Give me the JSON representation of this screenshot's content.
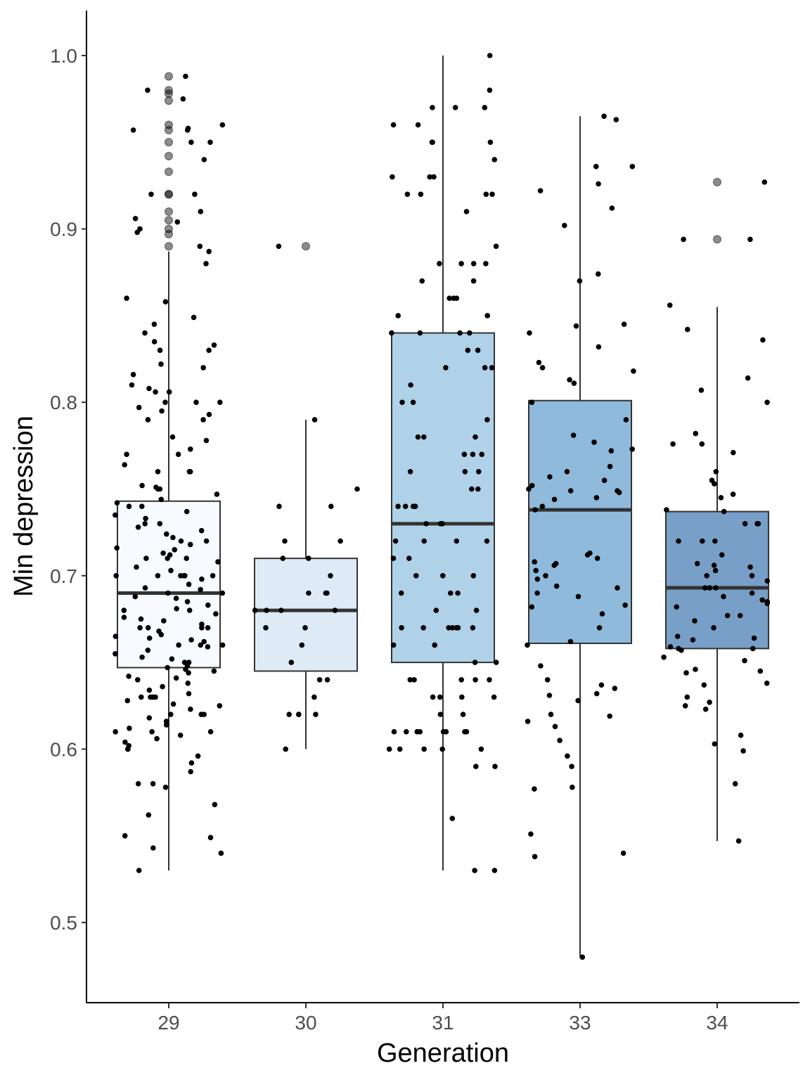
{
  "chart_data": {
    "type": "boxplot",
    "xlabel": "Generation",
    "ylabel": "Min depression",
    "categories": [
      "29",
      "30",
      "31",
      "33",
      "34"
    ],
    "ylim": [
      0.455,
      1.025
    ],
    "yticks": [
      0.5,
      0.6,
      0.7,
      0.8,
      0.9,
      1.0
    ],
    "ytick_labels": [
      "0.5",
      "0.6",
      "0.7",
      "0.8",
      "0.9",
      "1.0"
    ],
    "grid": false,
    "legend": "none",
    "boxes": [
      {
        "category": "29",
        "whisker_low": 0.53,
        "q1": 0.647,
        "median": 0.69,
        "q3": 0.743,
        "whisker_high": 0.887,
        "fill": "#f7fbff",
        "outliers": [
          0.988,
          0.98,
          0.978,
          0.974,
          0.96,
          0.957,
          0.95,
          0.942,
          0.933,
          0.92,
          0.92,
          0.91,
          0.905,
          0.9,
          0.897,
          0.89
        ]
      },
      {
        "category": "30",
        "whisker_low": 0.6,
        "q1": 0.645,
        "median": 0.68,
        "q3": 0.71,
        "whisker_high": 0.79,
        "fill": "#deebf7",
        "outliers": [
          0.89
        ]
      },
      {
        "category": "31",
        "whisker_low": 0.53,
        "q1": 0.65,
        "median": 0.73,
        "q3": 0.84,
        "whisker_high": 1.0,
        "fill": "#b0d2e8",
        "outliers": []
      },
      {
        "category": "33",
        "whisker_low": 0.48,
        "q1": 0.661,
        "median": 0.738,
        "q3": 0.801,
        "whisker_high": 0.965,
        "fill": "#8fbadb",
        "outliers": []
      },
      {
        "category": "34",
        "whisker_low": 0.547,
        "q1": 0.658,
        "median": 0.693,
        "q3": 0.737,
        "whisker_high": 0.855,
        "fill": "#789fc8",
        "outliers": [
          0.927,
          0.894
        ]
      }
    ],
    "points": [
      {
        "category": "29",
        "values": [
          0.988,
          0.98,
          0.975,
          0.96,
          0.958,
          0.957,
          0.957,
          0.95,
          0.95,
          0.94,
          0.92,
          0.92,
          0.91,
          0.906,
          0.904,
          0.9,
          0.898,
          0.89,
          0.887,
          0.88,
          0.86,
          0.858,
          0.849,
          0.845,
          0.84,
          0.835,
          0.833,
          0.83,
          0.83,
          0.822,
          0.82,
          0.816,
          0.81,
          0.808,
          0.806,
          0.806,
          0.8,
          0.8,
          0.8,
          0.797,
          0.795,
          0.793,
          0.79,
          0.79,
          0.78,
          0.778,
          0.773,
          0.77,
          0.77,
          0.764,
          0.76,
          0.76,
          0.76,
          0.752,
          0.751,
          0.75,
          0.75,
          0.747,
          0.744,
          0.742,
          0.74,
          0.74,
          0.737,
          0.735,
          0.733,
          0.73,
          0.73,
          0.728,
          0.726,
          0.724,
          0.722,
          0.72,
          0.72,
          0.718,
          0.716,
          0.715,
          0.713,
          0.712,
          0.71,
          0.71,
          0.71,
          0.708,
          0.705,
          0.703,
          0.7,
          0.7,
          0.7,
          0.7,
          0.7,
          0.7,
          0.698,
          0.695,
          0.693,
          0.692,
          0.69,
          0.69,
          0.688,
          0.687,
          0.685,
          0.683,
          0.681,
          0.68,
          0.68,
          0.678,
          0.676,
          0.675,
          0.674,
          0.672,
          0.67,
          0.67,
          0.67,
          0.67,
          0.668,
          0.666,
          0.665,
          0.664,
          0.663,
          0.662,
          0.66,
          0.66,
          0.66,
          0.659,
          0.657,
          0.655,
          0.653,
          0.652,
          0.65,
          0.65,
          0.648,
          0.647,
          0.646,
          0.645,
          0.644,
          0.642,
          0.641,
          0.64,
          0.638,
          0.636,
          0.634,
          0.632,
          0.63,
          0.63,
          0.63,
          0.63,
          0.628,
          0.626,
          0.625,
          0.623,
          0.62,
          0.62,
          0.62,
          0.618,
          0.616,
          0.614,
          0.612,
          0.61,
          0.61,
          0.61,
          0.608,
          0.606,
          0.604,
          0.602,
          0.6,
          0.6,
          0.596,
          0.592,
          0.587,
          0.58,
          0.58,
          0.578,
          0.568,
          0.562,
          0.55,
          0.549,
          0.543,
          0.54,
          0.53
        ]
      },
      {
        "category": "30",
        "values": [
          0.89,
          0.79,
          0.75,
          0.74,
          0.74,
          0.72,
          0.72,
          0.71,
          0.71,
          0.7,
          0.69,
          0.69,
          0.69,
          0.68,
          0.68,
          0.68,
          0.68,
          0.67,
          0.67,
          0.66,
          0.65,
          0.64,
          0.64,
          0.63,
          0.62,
          0.62,
          0.62,
          0.62,
          0.6
        ]
      },
      {
        "category": "31",
        "values": [
          1.0,
          0.98,
          0.97,
          0.97,
          0.97,
          0.96,
          0.96,
          0.95,
          0.95,
          0.95,
          0.94,
          0.93,
          0.93,
          0.93,
          0.92,
          0.92,
          0.92,
          0.92,
          0.91,
          0.89,
          0.88,
          0.88,
          0.88,
          0.88,
          0.87,
          0.87,
          0.86,
          0.86,
          0.86,
          0.85,
          0.85,
          0.84,
          0.84,
          0.84,
          0.84,
          0.83,
          0.83,
          0.82,
          0.82,
          0.82,
          0.81,
          0.8,
          0.8,
          0.79,
          0.78,
          0.78,
          0.78,
          0.77,
          0.77,
          0.77,
          0.76,
          0.76,
          0.76,
          0.75,
          0.75,
          0.74,
          0.74,
          0.74,
          0.74,
          0.73,
          0.73,
          0.73,
          0.72,
          0.72,
          0.72,
          0.72,
          0.71,
          0.71,
          0.7,
          0.7,
          0.7,
          0.69,
          0.69,
          0.69,
          0.68,
          0.68,
          0.67,
          0.67,
          0.67,
          0.67,
          0.67,
          0.67,
          0.67,
          0.66,
          0.66,
          0.65,
          0.65,
          0.64,
          0.64,
          0.64,
          0.64,
          0.64,
          0.63,
          0.63,
          0.63,
          0.63,
          0.62,
          0.62,
          0.61,
          0.61,
          0.61,
          0.61,
          0.61,
          0.61,
          0.61,
          0.61,
          0.6,
          0.6,
          0.6,
          0.6,
          0.6,
          0.59,
          0.59,
          0.56,
          0.53,
          0.53
        ]
      },
      {
        "category": "33",
        "values": [
          0.965,
          0.963,
          0.936,
          0.936,
          0.926,
          0.922,
          0.912,
          0.902,
          0.874,
          0.87,
          0.845,
          0.844,
          0.84,
          0.832,
          0.823,
          0.82,
          0.818,
          0.813,
          0.811,
          0.8,
          0.79,
          0.781,
          0.777,
          0.773,
          0.772,
          0.763,
          0.76,
          0.757,
          0.755,
          0.752,
          0.75,
          0.749,
          0.749,
          0.748,
          0.745,
          0.744,
          0.74,
          0.738,
          0.713,
          0.712,
          0.71,
          0.708,
          0.707,
          0.706,
          0.703,
          0.7,
          0.698,
          0.694,
          0.693,
          0.69,
          0.688,
          0.683,
          0.682,
          0.678,
          0.67,
          0.662,
          0.66,
          0.648,
          0.64,
          0.637,
          0.635,
          0.632,
          0.631,
          0.628,
          0.62,
          0.619,
          0.616,
          0.613,
          0.605,
          0.596,
          0.59,
          0.578,
          0.577,
          0.551,
          0.54,
          0.538,
          0.48
        ]
      },
      {
        "category": "34",
        "values": [
          0.927,
          0.894,
          0.894,
          0.856,
          0.842,
          0.836,
          0.814,
          0.807,
          0.8,
          0.782,
          0.776,
          0.776,
          0.771,
          0.76,
          0.755,
          0.753,
          0.747,
          0.745,
          0.738,
          0.737,
          0.73,
          0.73,
          0.73,
          0.72,
          0.72,
          0.72,
          0.712,
          0.707,
          0.706,
          0.705,
          0.703,
          0.7,
          0.7,
          0.697,
          0.693,
          0.693,
          0.693,
          0.69,
          0.688,
          0.686,
          0.685,
          0.684,
          0.682,
          0.677,
          0.677,
          0.674,
          0.67,
          0.665,
          0.664,
          0.663,
          0.659,
          0.658,
          0.658,
          0.657,
          0.653,
          0.651,
          0.646,
          0.645,
          0.644,
          0.638,
          0.637,
          0.63,
          0.627,
          0.625,
          0.623,
          0.608,
          0.603,
          0.599,
          0.58,
          0.547
        ]
      }
    ]
  }
}
